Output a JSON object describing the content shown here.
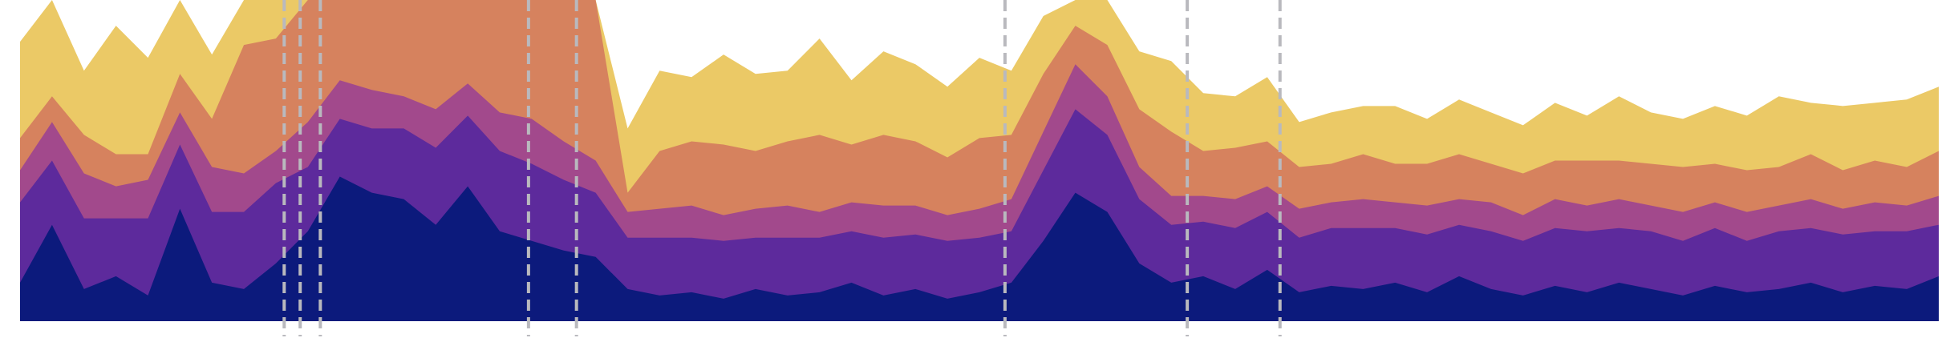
{
  "chart_data": {
    "type": "stacked_area",
    "x": [
      0,
      1,
      2,
      3,
      4,
      5,
      6,
      7,
      8,
      9,
      10,
      11,
      12,
      13,
      14,
      15,
      16,
      17,
      18,
      19,
      20,
      21,
      22,
      23,
      24,
      25,
      26,
      27,
      28,
      29,
      30,
      31,
      32,
      33,
      34,
      35,
      36,
      37,
      38,
      39,
      40,
      41,
      42,
      43,
      44,
      45,
      46,
      47,
      48,
      49,
      50,
      51,
      52,
      53,
      54,
      55,
      56,
      57,
      58,
      59,
      60
    ],
    "xlim": [
      0,
      60
    ],
    "ylim": [
      0,
      100
    ],
    "series": [
      {
        "color": "#0c1a7c",
        "values": [
          12,
          30,
          10,
          14,
          8,
          35,
          12,
          10,
          18,
          28,
          45,
          40,
          38,
          30,
          42,
          28,
          25,
          22,
          20,
          10,
          8,
          9,
          7,
          10,
          8,
          9,
          12,
          8,
          10,
          7,
          9,
          12,
          25,
          40,
          34,
          18,
          12,
          14,
          10,
          16,
          9,
          11,
          10,
          12,
          9,
          14,
          10,
          8,
          11,
          9,
          12,
          10,
          8,
          11,
          9,
          10,
          12,
          9,
          11,
          10,
          14
        ]
      },
      {
        "color": "#5d2a9c",
        "values": [
          25,
          20,
          22,
          18,
          24,
          20,
          22,
          24,
          25,
          20,
          18,
          20,
          22,
          24,
          22,
          25,
          24,
          22,
          20,
          16,
          18,
          17,
          18,
          16,
          18,
          17,
          16,
          18,
          17,
          18,
          17,
          16,
          22,
          26,
          24,
          20,
          18,
          17,
          19,
          18,
          17,
          18,
          19,
          17,
          18,
          16,
          18,
          17,
          18,
          19,
          17,
          18,
          17,
          18,
          16,
          18,
          17,
          18,
          17,
          18,
          16
        ]
      },
      {
        "color": "#a2498c",
        "values": [
          10,
          12,
          14,
          10,
          12,
          10,
          14,
          12,
          10,
          14,
          12,
          12,
          10,
          12,
          10,
          12,
          14,
          12,
          10,
          8,
          9,
          10,
          8,
          9,
          10,
          8,
          9,
          10,
          9,
          8,
          9,
          10,
          12,
          14,
          12,
          10,
          9,
          8,
          9,
          8,
          9,
          8,
          9,
          8,
          9,
          8,
          9,
          8,
          9,
          8,
          9,
          8,
          9,
          8,
          9,
          8,
          9,
          8,
          9,
          8,
          9
        ]
      },
      {
        "color": "#d6825e",
        "values": [
          10,
          8,
          12,
          10,
          8,
          12,
          15,
          40,
          35,
          38,
          25,
          28,
          30,
          34,
          26,
          35,
          37,
          44,
          50,
          6,
          18,
          20,
          22,
          18,
          20,
          24,
          18,
          22,
          20,
          18,
          22,
          20,
          18,
          12,
          16,
          18,
          20,
          14,
          16,
          14,
          13,
          12,
          14,
          12,
          13,
          14,
          12,
          13,
          12,
          14,
          12,
          13,
          14,
          12,
          13,
          12,
          14,
          12,
          13,
          12,
          14
        ]
      },
      {
        "color": "#ebc966",
        "values": [
          30,
          30,
          20,
          40,
          30,
          23,
          20,
          14,
          12,
          0,
          0,
          0,
          0,
          0,
          0,
          0,
          0,
          0,
          0,
          20,
          25,
          20,
          28,
          24,
          22,
          30,
          20,
          26,
          24,
          22,
          25,
          20,
          18,
          8,
          14,
          18,
          22,
          18,
          16,
          20,
          14,
          16,
          15,
          18,
          14,
          17,
          16,
          15,
          18,
          14,
          20,
          16,
          15,
          18,
          17,
          22,
          16,
          20,
          18,
          21,
          20
        ]
      }
    ],
    "markers": [
      8.26,
      8.76,
      9.39,
      15.9,
      17.4,
      30.8,
      36.5,
      39.4
    ],
    "marker_color": "#b9b9be"
  }
}
